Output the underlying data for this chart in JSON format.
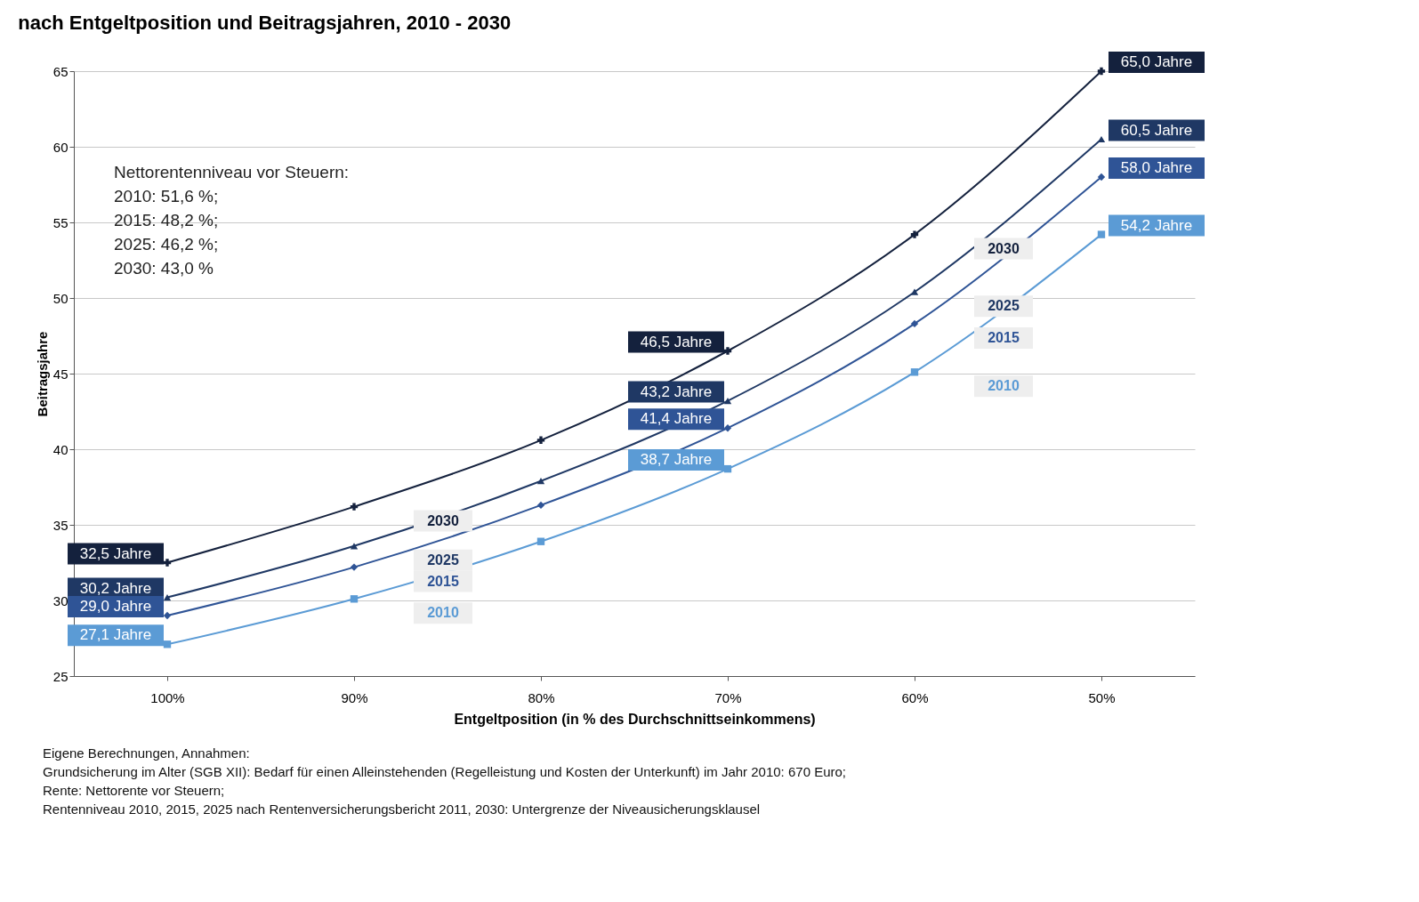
{
  "chart_data": {
    "type": "line",
    "title": "nach Entgeltposition und Beitragsjahren, 2010 - 2030",
    "xlabel": "Entgeltposition (in % des Durchschnittseinkommens)",
    "ylabel": "Beitragsjahre",
    "categories": [
      "100%",
      "90%",
      "80%",
      "70%",
      "60%",
      "50%"
    ],
    "series": [
      {
        "name": "2030",
        "color": "#14213d",
        "marker": "cross",
        "values": [
          32.5,
          36.2,
          40.6,
          46.5,
          54.2,
          65.0
        ],
        "value_labels": [
          "32,5 Jahre",
          null,
          null,
          "46,5 Jahre",
          null,
          "65,0 Jahre"
        ]
      },
      {
        "name": "2025",
        "color": "#1f3864",
        "marker": "triangle",
        "values": [
          30.2,
          33.6,
          37.9,
          43.2,
          50.4,
          60.5
        ],
        "value_labels": [
          "30,2 Jahre",
          null,
          null,
          "43,2 Jahre",
          null,
          "60,5 Jahre"
        ]
      },
      {
        "name": "2015",
        "color": "#2f5496",
        "marker": "diamond",
        "values": [
          29.0,
          32.2,
          36.3,
          41.4,
          48.3,
          58.0
        ],
        "value_labels": [
          "29,0 Jahre",
          null,
          null,
          "41,4 Jahre",
          null,
          "58,0 Jahre"
        ]
      },
      {
        "name": "2010",
        "color": "#5b9bd5",
        "marker": "square",
        "values": [
          27.1,
          30.1,
          33.9,
          38.7,
          45.1,
          54.2
        ],
        "value_labels": [
          "27,1 Jahre",
          null,
          null,
          "38,7 Jahre",
          null,
          "54,2 Jahre"
        ]
      }
    ],
    "ylim": [
      25,
      65
    ],
    "yticks": [
      25,
      30,
      35,
      40,
      45,
      50,
      55,
      60,
      65
    ],
    "grid": "y",
    "legend": false,
    "line_style": "solid",
    "annotations": [
      "Nettorentenniveau vor Steuern:\n2010: 51,6 %;\n2015: 48,2 %;\n2025: 46,2 %;\n2030: 43,0 %",
      "Eigene Berechnungen, Annahmen:\nGrundsicherung im Alter (SGB XII): Bedarf für einen Alleinstehenden (Regelleistung und Kosten der Unterkunft) im Jahr 2010:  670 Euro;\nRente: Nettorente vor Steuern;\nRentenniveau 2010, 2015, 2025 nach Rentenversicherungsbericht  2011,  2030: Untergrenze der Niveausicherungsklausel"
    ]
  }
}
